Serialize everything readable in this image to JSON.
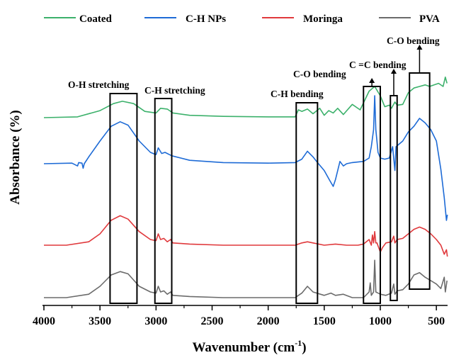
{
  "chart_data": {
    "type": "line",
    "title": "",
    "xlabel": "Wavenumber (cm",
    "xlabel_sup": "-1",
    "xlabel_close": ")",
    "ylabel": "Absorbance (%)",
    "xlim": [
      4000,
      400
    ],
    "x_reversed": true,
    "x_ticks": [
      4000,
      3500,
      3000,
      2500,
      2000,
      1500,
      1000,
      500
    ],
    "y_ticks_shown": false,
    "legend_position": "top",
    "series": [
      {
        "name": "Coated",
        "color": "#3cb16b",
        "points": [
          [
            4000,
            0.0
          ],
          [
            3700,
            0.005
          ],
          [
            3500,
            0.045
          ],
          [
            3380,
            0.09
          ],
          [
            3300,
            0.105
          ],
          [
            3200,
            0.09
          ],
          [
            3100,
            0.04
          ],
          [
            3000,
            0.03
          ],
          [
            2960,
            0.06
          ],
          [
            2900,
            0.055
          ],
          [
            2850,
            0.03
          ],
          [
            2700,
            0.015
          ],
          [
            2400,
            0.008
          ],
          [
            2000,
            0.005
          ],
          [
            1760,
            0.005
          ],
          [
            1730,
            0.05
          ],
          [
            1700,
            0.04
          ],
          [
            1650,
            0.055
          ],
          [
            1600,
            0.025
          ],
          [
            1540,
            0.06
          ],
          [
            1500,
            0.015
          ],
          [
            1460,
            0.045
          ],
          [
            1420,
            0.03
          ],
          [
            1380,
            0.06
          ],
          [
            1330,
            0.02
          ],
          [
            1250,
            0.085
          ],
          [
            1180,
            0.05
          ],
          [
            1100,
            0.17
          ],
          [
            1050,
            0.2
          ],
          [
            1000,
            0.14
          ],
          [
            960,
            0.07
          ],
          [
            920,
            0.08
          ],
          [
            900,
            0.06
          ],
          [
            870,
            0.1
          ],
          [
            850,
            0.08
          ],
          [
            800,
            0.085
          ],
          [
            750,
            0.16
          ],
          [
            700,
            0.19
          ],
          [
            650,
            0.2
          ],
          [
            600,
            0.21
          ],
          [
            560,
            0.2
          ],
          [
            520,
            0.21
          ],
          [
            480,
            0.22
          ],
          [
            440,
            0.2
          ],
          [
            420,
            0.26
          ],
          [
            405,
            0.22
          ]
        ]
      },
      {
        "name": "C-H NPs",
        "color": "#1e6bd6",
        "points": [
          [
            4000,
            0.0
          ],
          [
            3750,
            0.005
          ],
          [
            3700,
            -0.02
          ],
          [
            3690,
            0.01
          ],
          [
            3660,
            0.005
          ],
          [
            3650,
            -0.04
          ],
          [
            3640,
            0.0
          ],
          [
            3600,
            0.06
          ],
          [
            3500,
            0.2
          ],
          [
            3400,
            0.33
          ],
          [
            3320,
            0.37
          ],
          [
            3250,
            0.34
          ],
          [
            3150,
            0.2
          ],
          [
            3050,
            0.1
          ],
          [
            3000,
            0.08
          ],
          [
            2980,
            0.14
          ],
          [
            2950,
            0.09
          ],
          [
            2920,
            0.1
          ],
          [
            2860,
            0.07
          ],
          [
            2700,
            0.03
          ],
          [
            2400,
            0.01
          ],
          [
            2000,
            0.005
          ],
          [
            1760,
            0.01
          ],
          [
            1700,
            0.04
          ],
          [
            1650,
            0.11
          ],
          [
            1600,
            0.06
          ],
          [
            1560,
            0.01
          ],
          [
            1500,
            -0.06
          ],
          [
            1450,
            -0.15
          ],
          [
            1420,
            -0.2
          ],
          [
            1400,
            -0.14
          ],
          [
            1360,
            0.02
          ],
          [
            1330,
            -0.02
          ],
          [
            1300,
            0.0
          ],
          [
            1250,
            0.01
          ],
          [
            1150,
            0.02
          ],
          [
            1100,
            0.05
          ],
          [
            1080,
            0.15
          ],
          [
            1060,
            0.3
          ],
          [
            1050,
            0.6
          ],
          [
            1040,
            0.3
          ],
          [
            1020,
            0.1
          ],
          [
            1000,
            0.05
          ],
          [
            960,
            0.04
          ],
          [
            920,
            0.05
          ],
          [
            890,
            0.15
          ],
          [
            870,
            -0.06
          ],
          [
            860,
            0.15
          ],
          [
            800,
            0.2
          ],
          [
            750,
            0.28
          ],
          [
            700,
            0.33
          ],
          [
            650,
            0.4
          ],
          [
            600,
            0.36
          ],
          [
            550,
            0.3
          ],
          [
            500,
            0.2
          ],
          [
            460,
            -0.05
          ],
          [
            430,
            -0.3
          ],
          [
            410,
            -0.5
          ],
          [
            402,
            -0.45
          ]
        ]
      },
      {
        "name": "Moringa",
        "color": "#e0393c",
        "points": [
          [
            4000,
            0.0
          ],
          [
            3800,
            0.0
          ],
          [
            3600,
            0.03
          ],
          [
            3500,
            0.1
          ],
          [
            3400,
            0.22
          ],
          [
            3320,
            0.26
          ],
          [
            3250,
            0.23
          ],
          [
            3150,
            0.12
          ],
          [
            3050,
            0.05
          ],
          [
            3000,
            0.04
          ],
          [
            2980,
            0.1
          ],
          [
            2960,
            0.05
          ],
          [
            2930,
            0.06
          ],
          [
            2900,
            0.03
          ],
          [
            2870,
            0.05
          ],
          [
            2850,
            0.02
          ],
          [
            2700,
            0.01
          ],
          [
            2400,
            0.0
          ],
          [
            2000,
            0.0
          ],
          [
            1760,
            0.0
          ],
          [
            1700,
            0.02
          ],
          [
            1650,
            0.03
          ],
          [
            1600,
            0.02
          ],
          [
            1500,
            0.0
          ],
          [
            1400,
            0.01
          ],
          [
            1300,
            0.0
          ],
          [
            1200,
            0.0
          ],
          [
            1150,
            0.01
          ],
          [
            1100,
            0.05
          ],
          [
            1080,
            0.0
          ],
          [
            1070,
            0.09
          ],
          [
            1060,
            0.02
          ],
          [
            1050,
            0.12
          ],
          [
            1040,
            0.02
          ],
          [
            1030,
            0.02
          ],
          [
            1000,
            -0.06
          ],
          [
            980,
            -0.02
          ],
          [
            950,
            0.02
          ],
          [
            900,
            0.03
          ],
          [
            880,
            0.08
          ],
          [
            870,
            0.02
          ],
          [
            850,
            0.05
          ],
          [
            800,
            0.06
          ],
          [
            750,
            0.1
          ],
          [
            700,
            0.14
          ],
          [
            650,
            0.16
          ],
          [
            600,
            0.14
          ],
          [
            550,
            0.1
          ],
          [
            500,
            0.05
          ],
          [
            460,
            0.0
          ],
          [
            430,
            -0.08
          ],
          [
            410,
            -0.04
          ],
          [
            402,
            -0.1
          ]
        ]
      },
      {
        "name": "PVA",
        "color": "#6b6b6b",
        "points": [
          [
            4000,
            0.0
          ],
          [
            3800,
            0.0
          ],
          [
            3600,
            0.03
          ],
          [
            3500,
            0.1
          ],
          [
            3400,
            0.2
          ],
          [
            3320,
            0.23
          ],
          [
            3250,
            0.21
          ],
          [
            3150,
            0.1
          ],
          [
            3050,
            0.05
          ],
          [
            3000,
            0.04
          ],
          [
            2980,
            0.1
          ],
          [
            2960,
            0.05
          ],
          [
            2930,
            0.06
          ],
          [
            2900,
            0.03
          ],
          [
            2870,
            0.05
          ],
          [
            2850,
            0.02
          ],
          [
            2700,
            0.01
          ],
          [
            2400,
            0.0
          ],
          [
            2000,
            0.0
          ],
          [
            1760,
            0.0
          ],
          [
            1700,
            0.04
          ],
          [
            1650,
            0.1
          ],
          [
            1600,
            0.05
          ],
          [
            1500,
            0.02
          ],
          [
            1440,
            0.04
          ],
          [
            1400,
            0.02
          ],
          [
            1330,
            0.03
          ],
          [
            1250,
            0.0
          ],
          [
            1150,
            0.0
          ],
          [
            1100,
            0.05
          ],
          [
            1090,
            0.13
          ],
          [
            1080,
            0.02
          ],
          [
            1060,
            0.05
          ],
          [
            1050,
            0.33
          ],
          [
            1040,
            0.05
          ],
          [
            1020,
            0.04
          ],
          [
            1000,
            0.03
          ],
          [
            950,
            0.02
          ],
          [
            900,
            0.04
          ],
          [
            880,
            0.12
          ],
          [
            870,
            0.03
          ],
          [
            850,
            0.06
          ],
          [
            800,
            0.07
          ],
          [
            750,
            0.12
          ],
          [
            700,
            0.2
          ],
          [
            650,
            0.22
          ],
          [
            600,
            0.18
          ],
          [
            550,
            0.15
          ],
          [
            500,
            0.12
          ],
          [
            460,
            0.08
          ],
          [
            430,
            0.18
          ],
          [
            420,
            0.05
          ],
          [
            405,
            0.15
          ]
        ]
      }
    ],
    "annotations": [
      {
        "label": "O-H stretching",
        "x_range": [
          3410,
          3170
        ]
      },
      {
        "label": "C-H stretching",
        "x_range": [
          3010,
          2860
        ]
      },
      {
        "label": "C-H bending",
        "x_range": [
          1750,
          1560
        ]
      },
      {
        "label": "C-O bending",
        "x_range": [
          1150,
          1000
        ]
      },
      {
        "label": "C =C bending",
        "x_range": [
          910,
          850
        ]
      },
      {
        "label": "C-O bending",
        "x_range": [
          740,
          560
        ]
      }
    ]
  }
}
